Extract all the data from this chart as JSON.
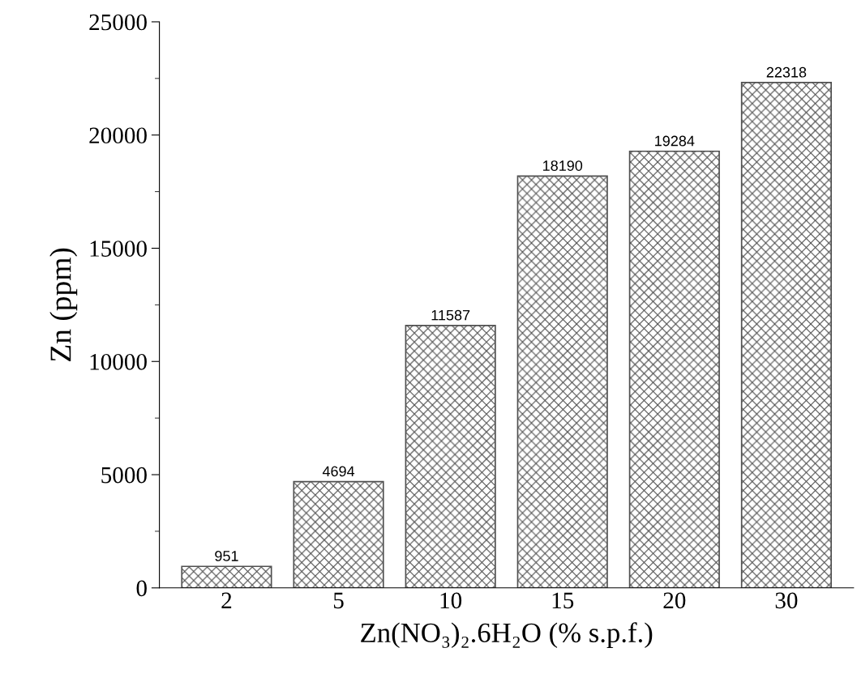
{
  "chart_data": {
    "type": "bar",
    "xlabel": "Zn(NO₃)₂.6H₂O (% s.p.f.)",
    "ylabel": "Zn (ppm)",
    "categories": [
      "2",
      "5",
      "10",
      "15",
      "20",
      "30"
    ],
    "values": [
      951,
      4694,
      11587,
      18190,
      19284,
      22318
    ],
    "color": "#505050",
    "ylim": [
      0,
      25000
    ],
    "yticks": [
      0,
      5000,
      10000,
      15000,
      20000,
      25000
    ],
    "data_labels": true,
    "grid": false,
    "legend": false
  }
}
